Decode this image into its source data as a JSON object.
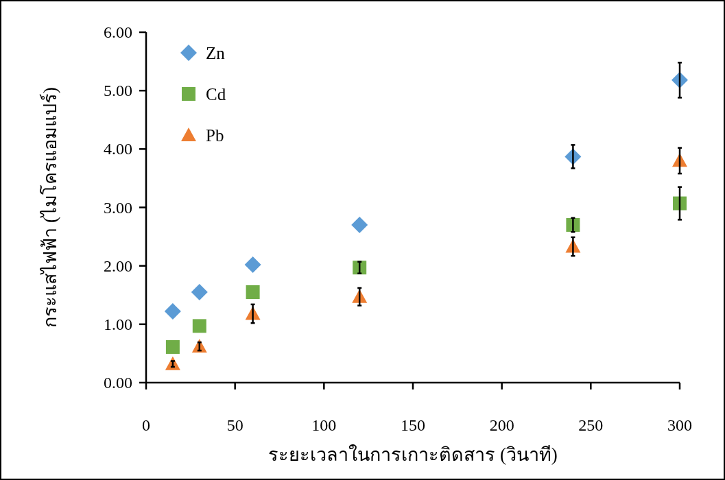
{
  "chart_data": {
    "type": "scatter",
    "xlabel": "ระยะเวลาในการเกาะติดสาร (วินาที)",
    "ylabel": "กระแสไฟฟ้า (ไมโครแอมแปร์)",
    "x": [
      15,
      30,
      60,
      120,
      240,
      300
    ],
    "series": [
      {
        "name": "Zn",
        "color": "#5b9bd5",
        "marker": "diamond",
        "values": [
          1.22,
          1.55,
          2.02,
          2.7,
          3.87,
          5.18
        ],
        "errors": [
          null,
          null,
          null,
          null,
          0.2,
          0.3
        ]
      },
      {
        "name": "Cd",
        "color": "#70ad47",
        "marker": "square",
        "values": [
          0.61,
          0.97,
          1.55,
          1.97,
          2.7,
          3.07
        ],
        "errors": [
          null,
          null,
          null,
          0.1,
          0.12,
          0.28
        ]
      },
      {
        "name": "Pb",
        "color": "#ed7d31",
        "marker": "triangle",
        "values": [
          0.32,
          0.62,
          1.18,
          1.47,
          2.33,
          3.8
        ],
        "errors": [
          0.05,
          0.07,
          0.16,
          0.15,
          0.16,
          0.22
        ]
      }
    ],
    "xlim": [
      0,
      300
    ],
    "xticks": [
      0,
      50,
      100,
      150,
      200,
      250,
      300
    ],
    "ylim": [
      0,
      6
    ],
    "yticks": [
      {
        "value": 0,
        "label": "0.00"
      },
      {
        "value": 1,
        "label": "1.00"
      },
      {
        "value": 2,
        "label": "2.00"
      },
      {
        "value": 3,
        "label": "3.00"
      },
      {
        "value": 4,
        "label": "4.00"
      },
      {
        "value": 5,
        "label": "5.00"
      },
      {
        "value": 6,
        "label": "6.00"
      }
    ],
    "grid": false,
    "legend": "top left"
  }
}
